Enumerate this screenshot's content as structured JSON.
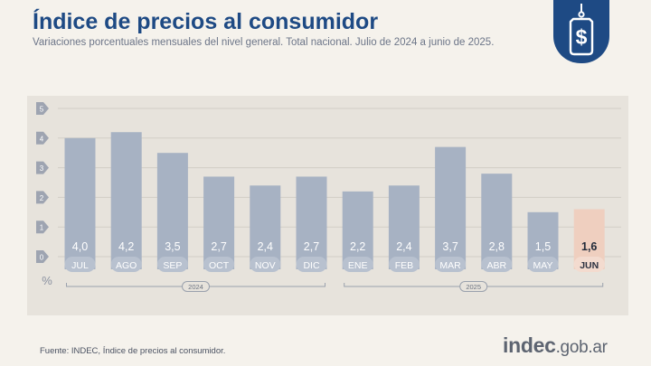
{
  "title": "Índice de precios al consumidor",
  "subtitle": "Variaciones porcentuales mensuales del nivel general. Total nacional. Julio de 2024 a junio de 2025.",
  "badge_icon": "price-tag-dollar-icon",
  "source": "Fuente: INDEC, Índice de precios al consumidor.",
  "logo": {
    "brand": "indec",
    "domain": ".gob.ar"
  },
  "colors": {
    "bar": "#a7b2c3",
    "highlight_bar": "#efcfbf",
    "title": "#1e4a84",
    "panel": "#e7e3dc"
  },
  "chart_data": {
    "type": "bar",
    "categories": [
      "JUL",
      "AGO",
      "SEP",
      "OCT",
      "NOV",
      "DIC",
      "ENE",
      "FEB",
      "MAR",
      "ABR",
      "MAY",
      "JUN"
    ],
    "values": [
      4.0,
      4.2,
      3.5,
      2.7,
      2.4,
      2.7,
      2.2,
      2.4,
      3.7,
      2.8,
      1.5,
      1.6
    ],
    "value_labels": [
      "4,0",
      "4,2",
      "3,5",
      "2,7",
      "2,4",
      "2,7",
      "2,2",
      "2,4",
      "3,7",
      "2,8",
      "1,5",
      "1,6"
    ],
    "highlight": "JUN",
    "ylabel": "%",
    "yticks": [
      "0",
      "1",
      "2",
      "3",
      "4",
      "5"
    ],
    "ylim": [
      0,
      5
    ],
    "grid": true,
    "year_groups": [
      {
        "label": "2024",
        "from": "JUL",
        "to": "DIC"
      },
      {
        "label": "2025",
        "from": "ENE",
        "to": "JUN"
      }
    ]
  }
}
